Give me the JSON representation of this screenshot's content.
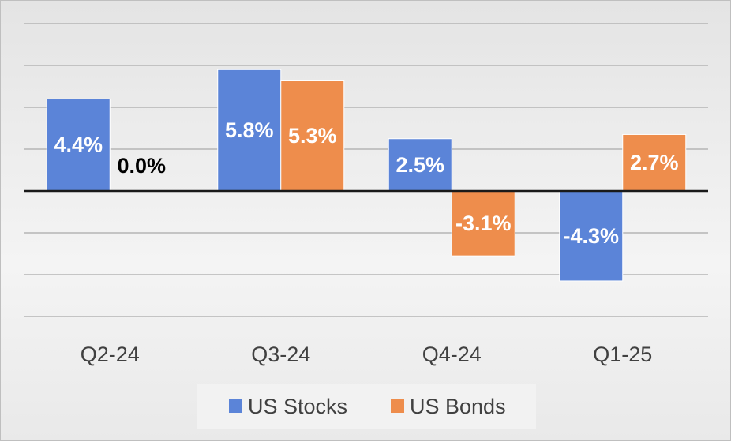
{
  "chart_data": {
    "type": "bar",
    "categories": [
      "Q2-24",
      "Q3-24",
      "Q4-24",
      "Q1-25"
    ],
    "series": [
      {
        "name": "US Stocks",
        "values": [
          4.4,
          5.8,
          2.5,
          -4.3
        ],
        "labels": [
          "4.4%",
          "5.8%",
          "2.5%",
          "-4.3%"
        ],
        "color": "#5b84d8"
      },
      {
        "name": "US Bonds",
        "values": [
          0.0,
          5.3,
          -3.1,
          2.7
        ],
        "labels": [
          "0.0%",
          "5.3%",
          "-3.1%",
          "2.7%"
        ],
        "color": "#ee8d4c"
      }
    ],
    "ylim": [
      -6,
      10
    ],
    "gridlines": true,
    "legend_position": "bottom"
  }
}
